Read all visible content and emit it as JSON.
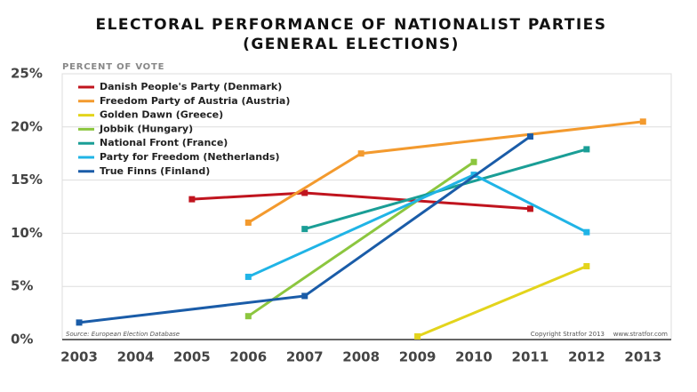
{
  "chart_data": {
    "type": "line",
    "title": [
      "ELECTORAL PERFORMANCE OF NATIONALIST PARTIES",
      "(GENERAL ELECTIONS)"
    ],
    "y_label": "PERCENT OF VOTE",
    "source": "Source: European Election Database",
    "copyright": "Copyright Stratfor 2013",
    "website": "www.stratfor.com",
    "xlim": [
      2002.7,
      2013.5
    ],
    "xticks": [
      2003,
      2004,
      2005,
      2006,
      2007,
      2008,
      2009,
      2010,
      2011,
      2012,
      2013
    ],
    "ylim": [
      0,
      25
    ],
    "yticks": [
      {
        "value": 0,
        "label": "0%"
      },
      {
        "value": 5,
        "label": "5%"
      },
      {
        "value": 10,
        "label": "10%"
      },
      {
        "value": 15,
        "label": "15%"
      },
      {
        "value": 20,
        "label": "20%"
      },
      {
        "value": 25,
        "label": "25%"
      }
    ],
    "grid": true,
    "legend": "upper-left",
    "series": [
      {
        "name": "Danish People's Party (Denmark)",
        "color": "#c0141e",
        "x": [
          2005,
          2007,
          2011
        ],
        "values": [
          13.2,
          13.8,
          12.3
        ]
      },
      {
        "name": "Freedom Party of Austria (Austria)",
        "color": "#f39a2e",
        "x": [
          2006,
          2008,
          2013
        ],
        "values": [
          11.0,
          17.5,
          20.5
        ]
      },
      {
        "name": "Golden Dawn (Greece)",
        "color": "#e3d41c",
        "x": [
          2009,
          2012
        ],
        "values": [
          0.3,
          6.9
        ]
      },
      {
        "name": "Jobbik (Hungary)",
        "color": "#8cc63f",
        "x": [
          2006,
          2010
        ],
        "values": [
          2.2,
          16.7
        ]
      },
      {
        "name": "National Front (France)",
        "color": "#1a9e96",
        "x": [
          2007,
          2012
        ],
        "values": [
          10.4,
          17.9
        ]
      },
      {
        "name": "Party for Freedom (Netherlands)",
        "color": "#20b4e6",
        "x": [
          2006,
          2010,
          2012
        ],
        "values": [
          5.9,
          15.5,
          10.1
        ]
      },
      {
        "name": "True Finns (Finland)",
        "color": "#1a5ca8",
        "x": [
          2003,
          2007,
          2011
        ],
        "values": [
          1.6,
          4.1,
          19.1
        ]
      }
    ]
  }
}
